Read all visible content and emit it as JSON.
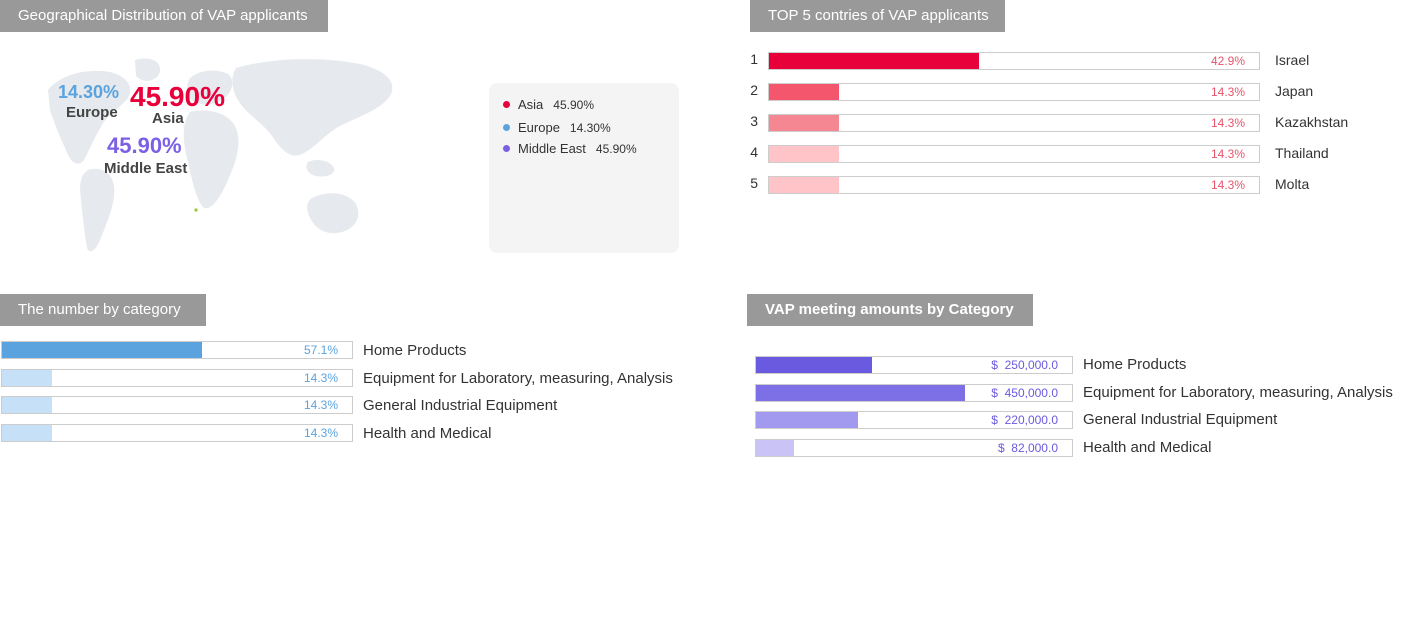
{
  "chart_data": [
    {
      "type": "map",
      "title": "Geographical Distribution of VAP applicants",
      "regions": [
        {
          "name": "Asia",
          "value": 45.9,
          "label": "45.90%",
          "color": "#e8003a"
        },
        {
          "name": "Europe",
          "value": 14.3,
          "label": "14.30%",
          "color": "#5ba3de"
        },
        {
          "name": "Middle East",
          "value": 45.9,
          "label": "45.90%",
          "color": "#7b60e6"
        }
      ],
      "legend_position": "right"
    },
    {
      "type": "bar",
      "title": "TOP 5 contries of VAP applicants",
      "xlim": [
        0,
        100
      ],
      "rows": [
        {
          "rank": "1",
          "category": "Israel",
          "value": 42.9,
          "label": "42.9%",
          "color": "#e8003a"
        },
        {
          "rank": "2",
          "category": "Japan",
          "value": 14.3,
          "label": "14.3%",
          "color": "#f4566e"
        },
        {
          "rank": "3",
          "category": "Kazakhstan",
          "value": 14.3,
          "label": "14.3%",
          "color": "#f48791"
        },
        {
          "rank": "4",
          "category": "Thailand",
          "value": 14.3,
          "label": "14.3%",
          "color": "#ffc4c8"
        },
        {
          "rank": "5",
          "category": "Molta",
          "value": 14.3,
          "label": "14.3%",
          "color": "#ffc4c8"
        }
      ],
      "value_text_color": "#e8546a"
    },
    {
      "type": "bar",
      "title": "The number by category",
      "xlim": [
        0,
        100
      ],
      "rows": [
        {
          "category": "Home Products",
          "value": 57.1,
          "label": "57.1%",
          "color": "#5ba3de"
        },
        {
          "category": "Equipment for Laboratory, measuring, Analysis",
          "value": 14.3,
          "label": "14.3%",
          "color": "#c5e0f7"
        },
        {
          "category": "General Industrial Equipment",
          "value": 14.3,
          "label": "14.3%",
          "color": "#c5e0f7"
        },
        {
          "category": "Health and Medical",
          "value": 14.3,
          "label": "14.3%",
          "color": "#c5e0f7"
        }
      ],
      "value_text_color": "#5ba3de"
    },
    {
      "type": "bar",
      "title": "VAP meeting amounts by Category",
      "xlim": [
        0,
        680000
      ],
      "rows": [
        {
          "category": "Home Products",
          "value": 250000,
          "label": "$  250,000.0",
          "color": "#6a5ae0"
        },
        {
          "category": "Equipment for Laboratory, measuring, Analysis",
          "value": 450000,
          "label": "$  450,000.0",
          "color": "#7d6fe6"
        },
        {
          "category": "General Industrial Equipment",
          "value": 220000,
          "label": "$  220,000.0",
          "color": "#a29aef"
        },
        {
          "category": "Health and Medical",
          "value": 82000,
          "label": "$  82,000.0",
          "color": "#c9c4f5"
        }
      ],
      "value_text_color": "#6a5ae0"
    }
  ]
}
